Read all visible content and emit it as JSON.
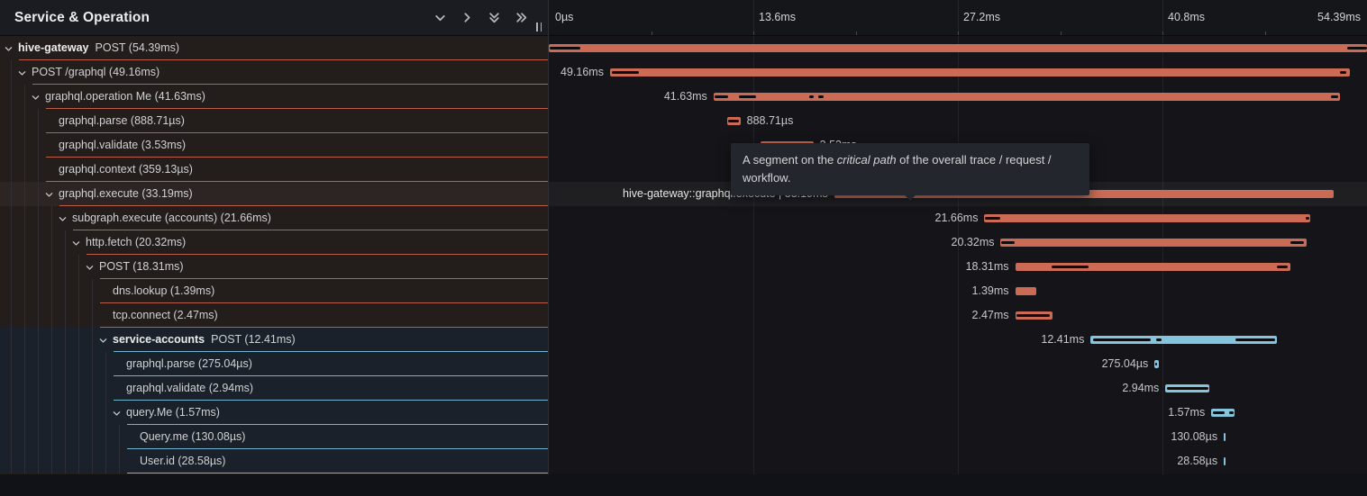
{
  "panel": {
    "title": "Service & Operation"
  },
  "toolbar": {
    "icons": [
      "chevron-down-icon",
      "chevron-right-icon",
      "chevrons-down-icon",
      "chevrons-right-icon"
    ],
    "resize_handle": "grip-vertical-icon"
  },
  "timeline": {
    "total_ms": 54.39,
    "ticks": [
      {
        "label": "0µs",
        "pos": 0
      },
      {
        "label": "13.6ms",
        "pos": 25
      },
      {
        "label": "27.2ms",
        "pos": 50
      },
      {
        "label": "40.8ms",
        "pos": 75
      },
      {
        "label": "54.39ms",
        "pos": 100
      }
    ]
  },
  "tooltip": {
    "prefix": "A segment on the ",
    "emphasis": "critical path",
    "suffix": " of the overall trace / request / workflow."
  },
  "colors": {
    "salmon": "#cb6a55",
    "salmon_border": "#bb5f4b",
    "blue": "#85c4dd",
    "blue_border": "#6fb3cf",
    "critical": "#0d0d0f"
  },
  "rows": [
    {
      "service": "hive-gateway",
      "operation": "POST",
      "duration": "54.39ms",
      "level": 0,
      "has_children": true,
      "color": "salmon",
      "bar": {
        "start": 0,
        "dur": 54.39,
        "label": "",
        "side": "left",
        "crit": [
          [
            0.08,
            2.1
          ],
          [
            53.05,
            54.39
          ]
        ]
      }
    },
    {
      "service": null,
      "operation": "POST /graphql",
      "duration": "49.16ms",
      "level": 1,
      "has_children": true,
      "color": "salmon",
      "bar": {
        "start": 4.07,
        "dur": 49.16,
        "label": "49.16ms",
        "side": "left",
        "crit": [
          [
            4.18,
            6.0
          ],
          [
            52.6,
            53.0
          ]
        ]
      }
    },
    {
      "service": null,
      "operation": "graphql.operation Me",
      "duration": "41.63ms",
      "level": 2,
      "has_children": true,
      "color": "salmon",
      "bar": {
        "start": 10.95,
        "dur": 41.63,
        "label": "41.63ms",
        "side": "left",
        "crit": [
          [
            11.05,
            11.95
          ],
          [
            12.65,
            13.8
          ],
          [
            17.3,
            17.62
          ],
          [
            17.9,
            18.25
          ],
          [
            52.0,
            52.45
          ]
        ]
      }
    },
    {
      "service": null,
      "operation": "graphql.parse",
      "duration": "888.71µs",
      "level": 3,
      "has_children": false,
      "color": "salmon",
      "bar": {
        "start": 11.85,
        "dur": 0.889,
        "label": "888.71µs",
        "side": "right",
        "crit": [
          [
            11.93,
            12.62
          ]
        ]
      }
    },
    {
      "service": null,
      "operation": "graphql.validate",
      "duration": "3.53ms",
      "level": 3,
      "has_children": false,
      "color": "salmon",
      "bar": {
        "start": 14.06,
        "dur": 3.53,
        "label": "3.53ms",
        "side": "right",
        "crit": [
          [
            14.2,
            17.45
          ]
        ]
      }
    },
    {
      "service": null,
      "operation": "graphql.context",
      "duration": "359.13µs",
      "level": 3,
      "has_children": false,
      "color": "salmon",
      "bar": {
        "start": 17.66,
        "dur": 0.359,
        "label": "359.13µs",
        "side": "left",
        "crit": []
      }
    },
    {
      "service": null,
      "operation": "graphql.execute",
      "duration": "33.19ms",
      "level": 3,
      "has_children": true,
      "color": "salmon",
      "hovered": true,
      "bar": {
        "start": 18.97,
        "dur": 33.19,
        "label": "hive-gateway::graphql.execute | 33.19ms",
        "side": "left",
        "crit": [
          [
            19.12,
            28.9
          ]
        ]
      }
    },
    {
      "service": null,
      "operation": "subgraph.execute (accounts)",
      "duration": "21.66ms",
      "level": 4,
      "has_children": true,
      "color": "salmon",
      "bar": {
        "start": 28.96,
        "dur": 21.66,
        "label": "21.66ms",
        "side": "left",
        "crit": [
          [
            29.0,
            30.0
          ],
          [
            50.3,
            50.55
          ]
        ]
      }
    },
    {
      "service": null,
      "operation": "http.fetch",
      "duration": "20.32ms",
      "level": 5,
      "has_children": true,
      "color": "salmon",
      "bar": {
        "start": 30.04,
        "dur": 20.32,
        "label": "20.32ms",
        "side": "left",
        "crit": [
          [
            30.1,
            30.95
          ],
          [
            49.3,
            50.2
          ]
        ]
      }
    },
    {
      "service": null,
      "operation": "POST",
      "duration": "18.31ms",
      "level": 6,
      "has_children": true,
      "color": "salmon",
      "bar": {
        "start": 31.0,
        "dur": 18.31,
        "label": "18.31ms",
        "side": "left",
        "crit": [
          [
            33.4,
            35.9
          ],
          [
            48.4,
            49.12
          ]
        ]
      }
    },
    {
      "service": null,
      "operation": "dns.lookup",
      "duration": "1.39ms",
      "level": 7,
      "has_children": false,
      "color": "salmon",
      "bar": {
        "start": 31.0,
        "dur": 1.39,
        "label": "1.39ms",
        "side": "left",
        "crit": []
      }
    },
    {
      "service": null,
      "operation": "tcp.connect",
      "duration": "2.47ms",
      "level": 7,
      "has_children": false,
      "color": "salmon",
      "bar": {
        "start": 31.0,
        "dur": 2.47,
        "label": "2.47ms",
        "side": "left",
        "crit": [
          [
            31.1,
            33.32
          ]
        ]
      }
    },
    {
      "service": "service-accounts",
      "operation": "POST",
      "duration": "12.41ms",
      "level": 7,
      "has_children": true,
      "color": "blue",
      "bar": {
        "start": 36.02,
        "dur": 12.41,
        "label": "12.41ms",
        "side": "left",
        "crit": [
          [
            36.2,
            40.0
          ],
          [
            40.35,
            40.72
          ],
          [
            45.62,
            48.28
          ]
        ]
      }
    },
    {
      "service": null,
      "operation": "graphql.parse",
      "duration": "275.04µs",
      "level": 8,
      "has_children": false,
      "color": "blue",
      "bar": {
        "start": 40.27,
        "dur": 0.275,
        "label": "275.04µs",
        "side": "left",
        "crit": [
          [
            40.33,
            40.45
          ]
        ]
      }
    },
    {
      "service": null,
      "operation": "graphql.validate",
      "duration": "2.94ms",
      "level": 8,
      "has_children": false,
      "color": "blue",
      "bar": {
        "start": 40.99,
        "dur": 2.94,
        "label": "2.94ms",
        "side": "left",
        "crit": [
          [
            41.1,
            43.82
          ]
        ]
      }
    },
    {
      "service": null,
      "operation": "query.Me",
      "duration": "1.57ms",
      "level": 8,
      "has_children": true,
      "color": "blue",
      "bar": {
        "start": 44.04,
        "dur": 1.57,
        "label": "1.57ms",
        "side": "left",
        "crit": [
          [
            44.12,
            44.9
          ],
          [
            45.25,
            45.5
          ]
        ]
      }
    },
    {
      "service": null,
      "operation": "Query.me",
      "duration": "130.08µs",
      "level": 9,
      "has_children": false,
      "color": "blue",
      "bar": {
        "start": 44.87,
        "dur": 0.13,
        "label": "130.08µs",
        "side": "left",
        "crit": []
      }
    },
    {
      "service": null,
      "operation": "User.id",
      "duration": "28.58µs",
      "level": 9,
      "has_children": false,
      "color": "blue",
      "bar": {
        "start": 44.87,
        "dur": 0.0286,
        "label": "28.58µs",
        "side": "left",
        "crit": []
      }
    }
  ]
}
